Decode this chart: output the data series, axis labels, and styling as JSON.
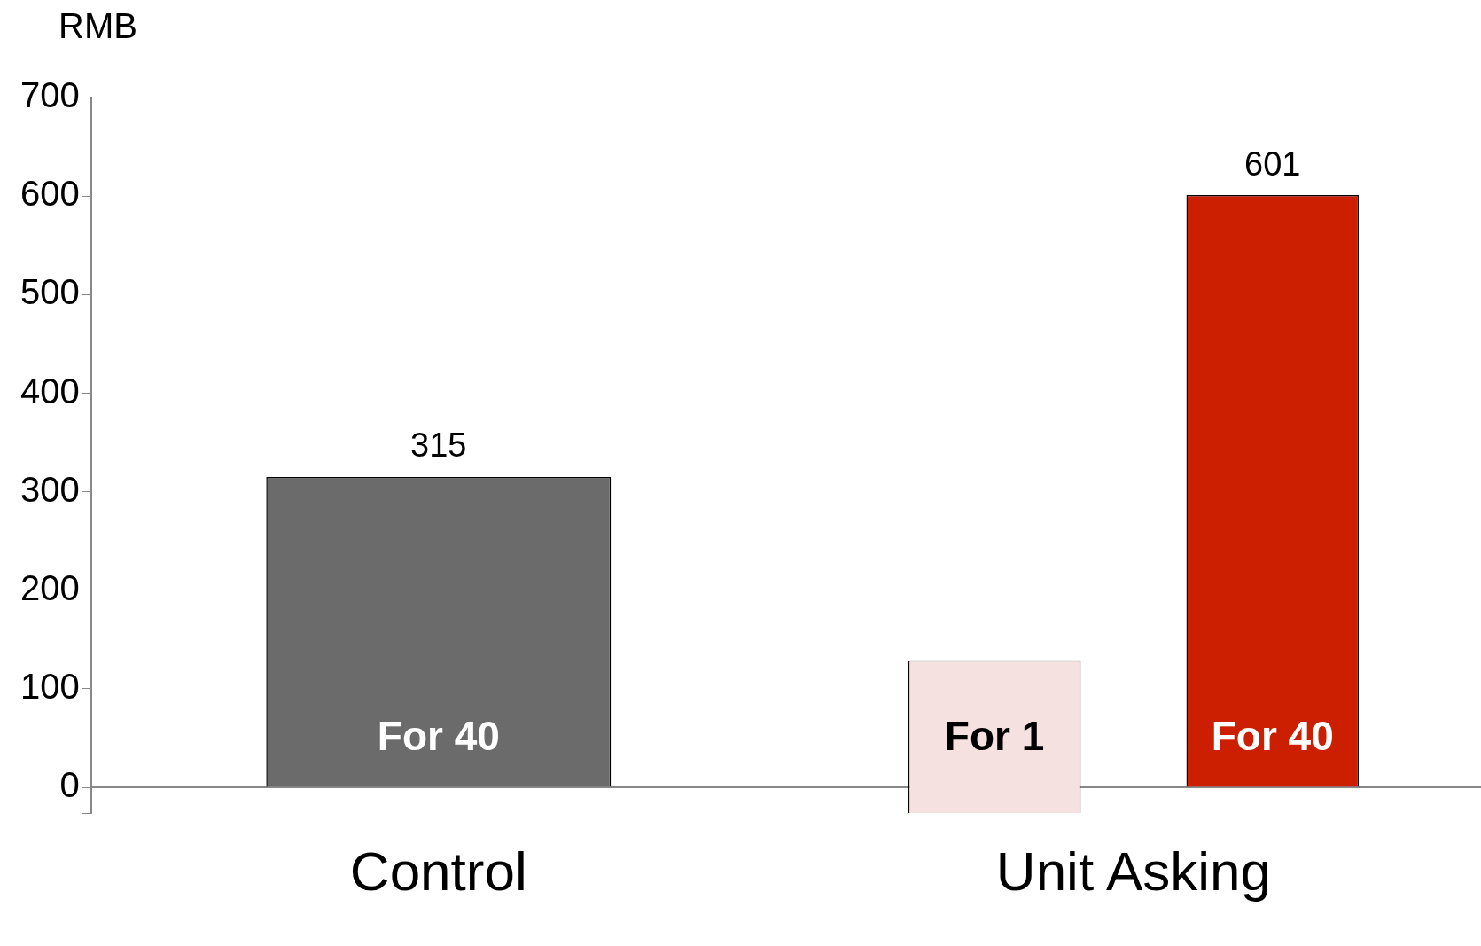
{
  "chart_data": {
    "type": "bar",
    "ylabel": "RMB",
    "categories": [
      "Control",
      "Unit Asking"
    ],
    "series": [
      {
        "name": "For 1",
        "color": "#f5e1e0",
        "values": [
          null,
          155
        ],
        "base": [
          null,
          -26
        ]
      },
      {
        "name": "For 40",
        "colors": [
          "#6b6b6b",
          "#cc1e00"
        ],
        "values": [
          315,
          601
        ],
        "value_labels": [
          "315",
          "601"
        ]
      }
    ],
    "ylim": [
      -26,
      700
    ],
    "yticks": [
      {
        "value": -26,
        "label": null
      },
      0,
      100,
      200,
      300,
      400,
      500,
      600,
      700
    ],
    "grid": false,
    "legend": false
  }
}
